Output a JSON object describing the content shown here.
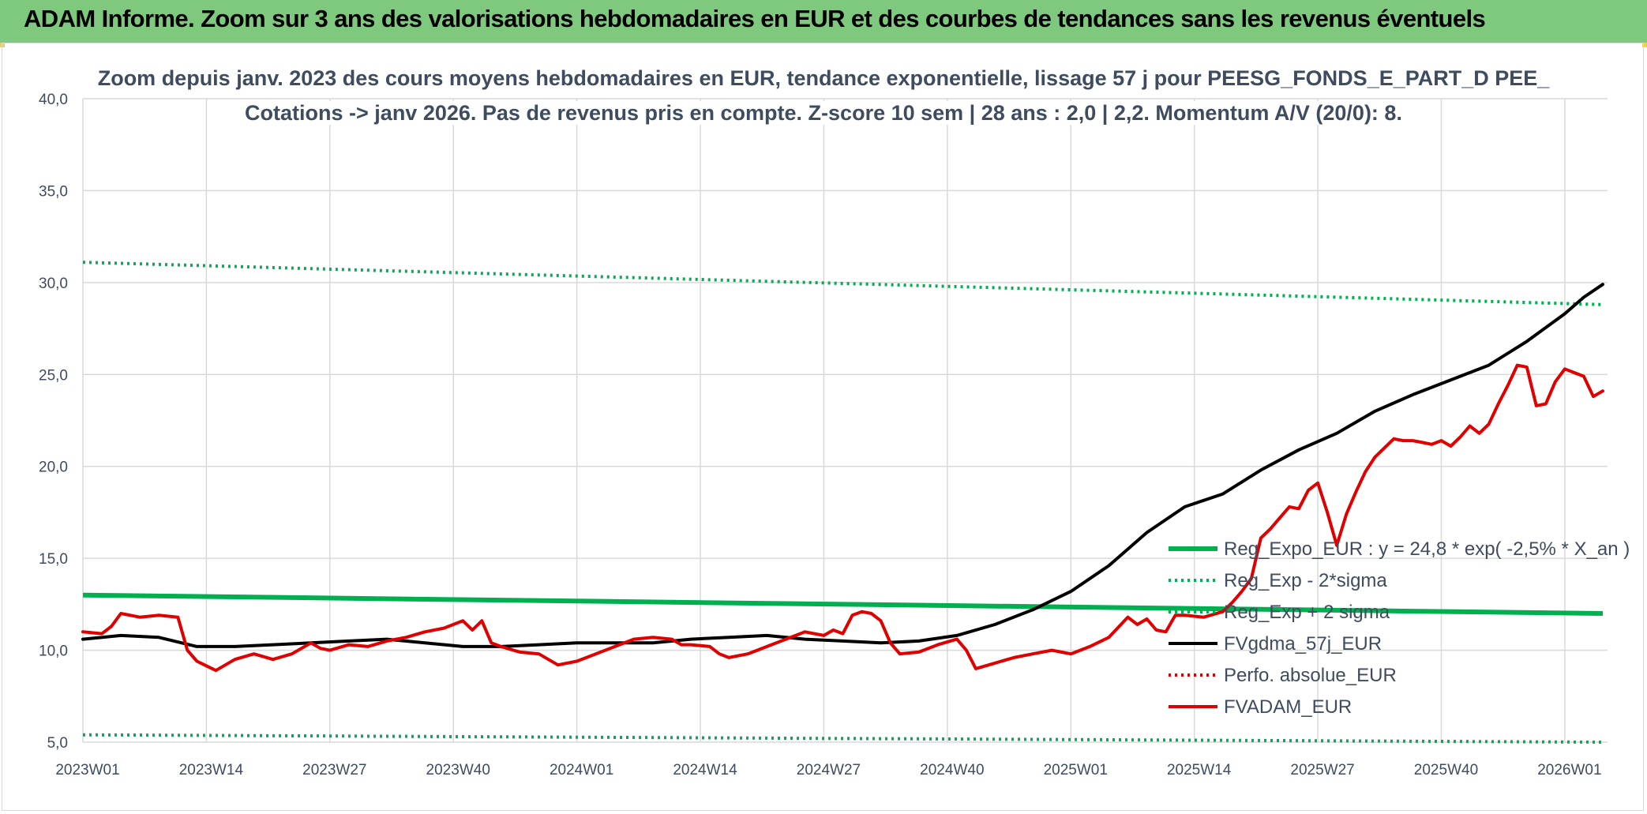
{
  "banner": {
    "title": "ADAM Informe. Zoom sur 3 ans des valorisations hebdomadaires en EUR et des courbes de tendances sans les revenus éventuels"
  },
  "colors": {
    "banner_bg": "#7ec97e",
    "reg_expo": "#00b050",
    "fvgdma": "#000000",
    "perfo": "#e00000",
    "fvadam": "#e00000",
    "grid": "#d9d9d9",
    "text": "#3f4b5e"
  },
  "chart_data": {
    "type": "line",
    "title_line1": "Zoom depuis janv. 2023 des cours moyens hebdomadaires en EUR, tendance exponentielle, lissage 57 j pour PEESG_FONDS_E_PART_D PEE_",
    "title_line2": "Cotations -> janv 2026. Pas de revenus pris en compte. Z-score 10 sem | 28 ans : 2,0 | 2,2. Momentum A/V (20/0): 8.",
    "ylim": [
      5,
      40
    ],
    "yticks": [
      "40,0",
      "35,0",
      "30,0",
      "25,0",
      "20,0",
      "15,0",
      "10,0",
      "5,0"
    ],
    "ytick_values": [
      40,
      35,
      30,
      25,
      20,
      15,
      10,
      5
    ],
    "x_count": 160,
    "xticks": [
      {
        "label": "2023W01",
        "week": 0
      },
      {
        "label": "2023W14",
        "week": 13
      },
      {
        "label": "2023W27",
        "week": 26
      },
      {
        "label": "2023W40",
        "week": 39
      },
      {
        "label": "2024W01",
        "week": 52
      },
      {
        "label": "2024W14",
        "week": 65
      },
      {
        "label": "2024W27",
        "week": 78
      },
      {
        "label": "2024W40",
        "week": 91
      },
      {
        "label": "2025W01",
        "week": 104
      },
      {
        "label": "2025W14",
        "week": 117
      },
      {
        "label": "2025W27",
        "week": 130
      },
      {
        "label": "2025W40",
        "week": 143
      },
      {
        "label": "2026W01",
        "week": 156
      }
    ],
    "grid": true,
    "legend_position": "right",
    "series": [
      {
        "name": "Reg_Expo_EUR : y = 24,8 * exp( -2,5% *  X_an )",
        "style": "thick-solid",
        "color": "#00b050",
        "points": [
          [
            0,
            13.0
          ],
          [
            160,
            12.0
          ]
        ]
      },
      {
        "name": "Reg_Exp - 2*sigma",
        "style": "dotted",
        "color": "#00b050",
        "points": [
          [
            0,
            5.4
          ],
          [
            160,
            5.0
          ]
        ]
      },
      {
        "name": "Reg_Exp + 2 sigma",
        "style": "dotted",
        "color": "#00b050",
        "points": [
          [
            0,
            31.1
          ],
          [
            160,
            28.8
          ]
        ]
      },
      {
        "name": "FVgdma_57j_EUR",
        "style": "solid",
        "color": "#000000",
        "points": [
          [
            0,
            10.6
          ],
          [
            4,
            10.8
          ],
          [
            8,
            10.7
          ],
          [
            12,
            10.2
          ],
          [
            16,
            10.2
          ],
          [
            20,
            10.3
          ],
          [
            24,
            10.4
          ],
          [
            28,
            10.5
          ],
          [
            32,
            10.6
          ],
          [
            36,
            10.4
          ],
          [
            40,
            10.2
          ],
          [
            44,
            10.2
          ],
          [
            48,
            10.3
          ],
          [
            52,
            10.4
          ],
          [
            56,
            10.4
          ],
          [
            60,
            10.4
          ],
          [
            64,
            10.6
          ],
          [
            68,
            10.7
          ],
          [
            72,
            10.8
          ],
          [
            76,
            10.6
          ],
          [
            80,
            10.5
          ],
          [
            84,
            10.4
          ],
          [
            88,
            10.5
          ],
          [
            92,
            10.8
          ],
          [
            96,
            11.4
          ],
          [
            100,
            12.2
          ],
          [
            104,
            13.2
          ],
          [
            108,
            14.6
          ],
          [
            112,
            16.4
          ],
          [
            116,
            17.8
          ],
          [
            120,
            18.5
          ],
          [
            124,
            19.8
          ],
          [
            128,
            20.9
          ],
          [
            132,
            21.8
          ],
          [
            136,
            23.0
          ],
          [
            140,
            23.9
          ],
          [
            144,
            24.7
          ],
          [
            148,
            25.5
          ],
          [
            152,
            26.8
          ],
          [
            156,
            28.3
          ],
          [
            158,
            29.2
          ],
          [
            160,
            29.9
          ]
        ]
      },
      {
        "name": "Perfo. absolue_EUR",
        "style": "dotted",
        "color": "#e00000",
        "points": []
      },
      {
        "name": "FVADAM_EUR",
        "style": "solid",
        "color": "#e00000",
        "points": [
          [
            0,
            11.0
          ],
          [
            2,
            10.9
          ],
          [
            3,
            11.3
          ],
          [
            4,
            12.0
          ],
          [
            6,
            11.8
          ],
          [
            8,
            11.9
          ],
          [
            10,
            11.8
          ],
          [
            11,
            10.0
          ],
          [
            12,
            9.4
          ],
          [
            14,
            8.9
          ],
          [
            16,
            9.5
          ],
          [
            18,
            9.8
          ],
          [
            20,
            9.5
          ],
          [
            22,
            9.8
          ],
          [
            24,
            10.4
          ],
          [
            25,
            10.1
          ],
          [
            26,
            10.0
          ],
          [
            28,
            10.3
          ],
          [
            30,
            10.2
          ],
          [
            32,
            10.5
          ],
          [
            34,
            10.7
          ],
          [
            36,
            11.0
          ],
          [
            38,
            11.2
          ],
          [
            40,
            11.6
          ],
          [
            41,
            11.1
          ],
          [
            42,
            11.6
          ],
          [
            43,
            10.4
          ],
          [
            44,
            10.2
          ],
          [
            46,
            9.9
          ],
          [
            48,
            9.8
          ],
          [
            50,
            9.2
          ],
          [
            52,
            9.4
          ],
          [
            54,
            9.8
          ],
          [
            56,
            10.2
          ],
          [
            58,
            10.6
          ],
          [
            60,
            10.7
          ],
          [
            62,
            10.6
          ],
          [
            63,
            10.3
          ],
          [
            64,
            10.3
          ],
          [
            66,
            10.2
          ],
          [
            67,
            9.8
          ],
          [
            68,
            9.6
          ],
          [
            70,
            9.8
          ],
          [
            72,
            10.2
          ],
          [
            74,
            10.6
          ],
          [
            76,
            11.0
          ],
          [
            78,
            10.8
          ],
          [
            79,
            11.1
          ],
          [
            80,
            10.9
          ],
          [
            81,
            11.9
          ],
          [
            82,
            12.1
          ],
          [
            83,
            12.0
          ],
          [
            84,
            11.6
          ],
          [
            85,
            10.4
          ],
          [
            86,
            9.8
          ],
          [
            88,
            9.9
          ],
          [
            90,
            10.3
          ],
          [
            92,
            10.6
          ],
          [
            93,
            10.0
          ],
          [
            94,
            9.0
          ],
          [
            96,
            9.3
          ],
          [
            98,
            9.6
          ],
          [
            100,
            9.8
          ],
          [
            102,
            10.0
          ],
          [
            104,
            9.8
          ],
          [
            106,
            10.2
          ],
          [
            108,
            10.7
          ],
          [
            110,
            11.8
          ],
          [
            111,
            11.4
          ],
          [
            112,
            11.7
          ],
          [
            113,
            11.1
          ],
          [
            114,
            11.0
          ],
          [
            115,
            11.9
          ],
          [
            116,
            11.9
          ],
          [
            118,
            11.8
          ],
          [
            120,
            12.1
          ],
          [
            121,
            12.6
          ],
          [
            122,
            13.2
          ],
          [
            123,
            13.9
          ],
          [
            124,
            16.1
          ],
          [
            125,
            16.6
          ],
          [
            126,
            17.2
          ],
          [
            127,
            17.8
          ],
          [
            128,
            17.7
          ],
          [
            129,
            18.7
          ],
          [
            130,
            19.1
          ],
          [
            131,
            17.5
          ],
          [
            132,
            15.7
          ],
          [
            133,
            17.4
          ],
          [
            134,
            18.6
          ],
          [
            135,
            19.7
          ],
          [
            136,
            20.5
          ],
          [
            137,
            21.0
          ],
          [
            138,
            21.5
          ],
          [
            139,
            21.4
          ],
          [
            140,
            21.4
          ],
          [
            141,
            21.3
          ],
          [
            142,
            21.2
          ],
          [
            143,
            21.4
          ],
          [
            144,
            21.1
          ],
          [
            145,
            21.6
          ],
          [
            146,
            22.2
          ],
          [
            147,
            21.8
          ],
          [
            148,
            22.3
          ],
          [
            149,
            23.4
          ],
          [
            150,
            24.4
          ],
          [
            151,
            25.5
          ],
          [
            152,
            25.4
          ],
          [
            153,
            23.3
          ],
          [
            154,
            23.4
          ],
          [
            155,
            24.6
          ],
          [
            156,
            25.3
          ],
          [
            157,
            25.1
          ],
          [
            158,
            24.9
          ],
          [
            159,
            23.8
          ],
          [
            160,
            24.1
          ]
        ]
      }
    ],
    "legend_order": [
      "Reg_Expo_EUR : y = 24,8 * exp( -2,5% *  X_an )",
      "Reg_Exp - 2*sigma",
      "Reg_Exp + 2 sigma",
      "FVgdma_57j_EUR",
      "Perfo. absolue_EUR",
      "FVADAM_EUR"
    ]
  }
}
